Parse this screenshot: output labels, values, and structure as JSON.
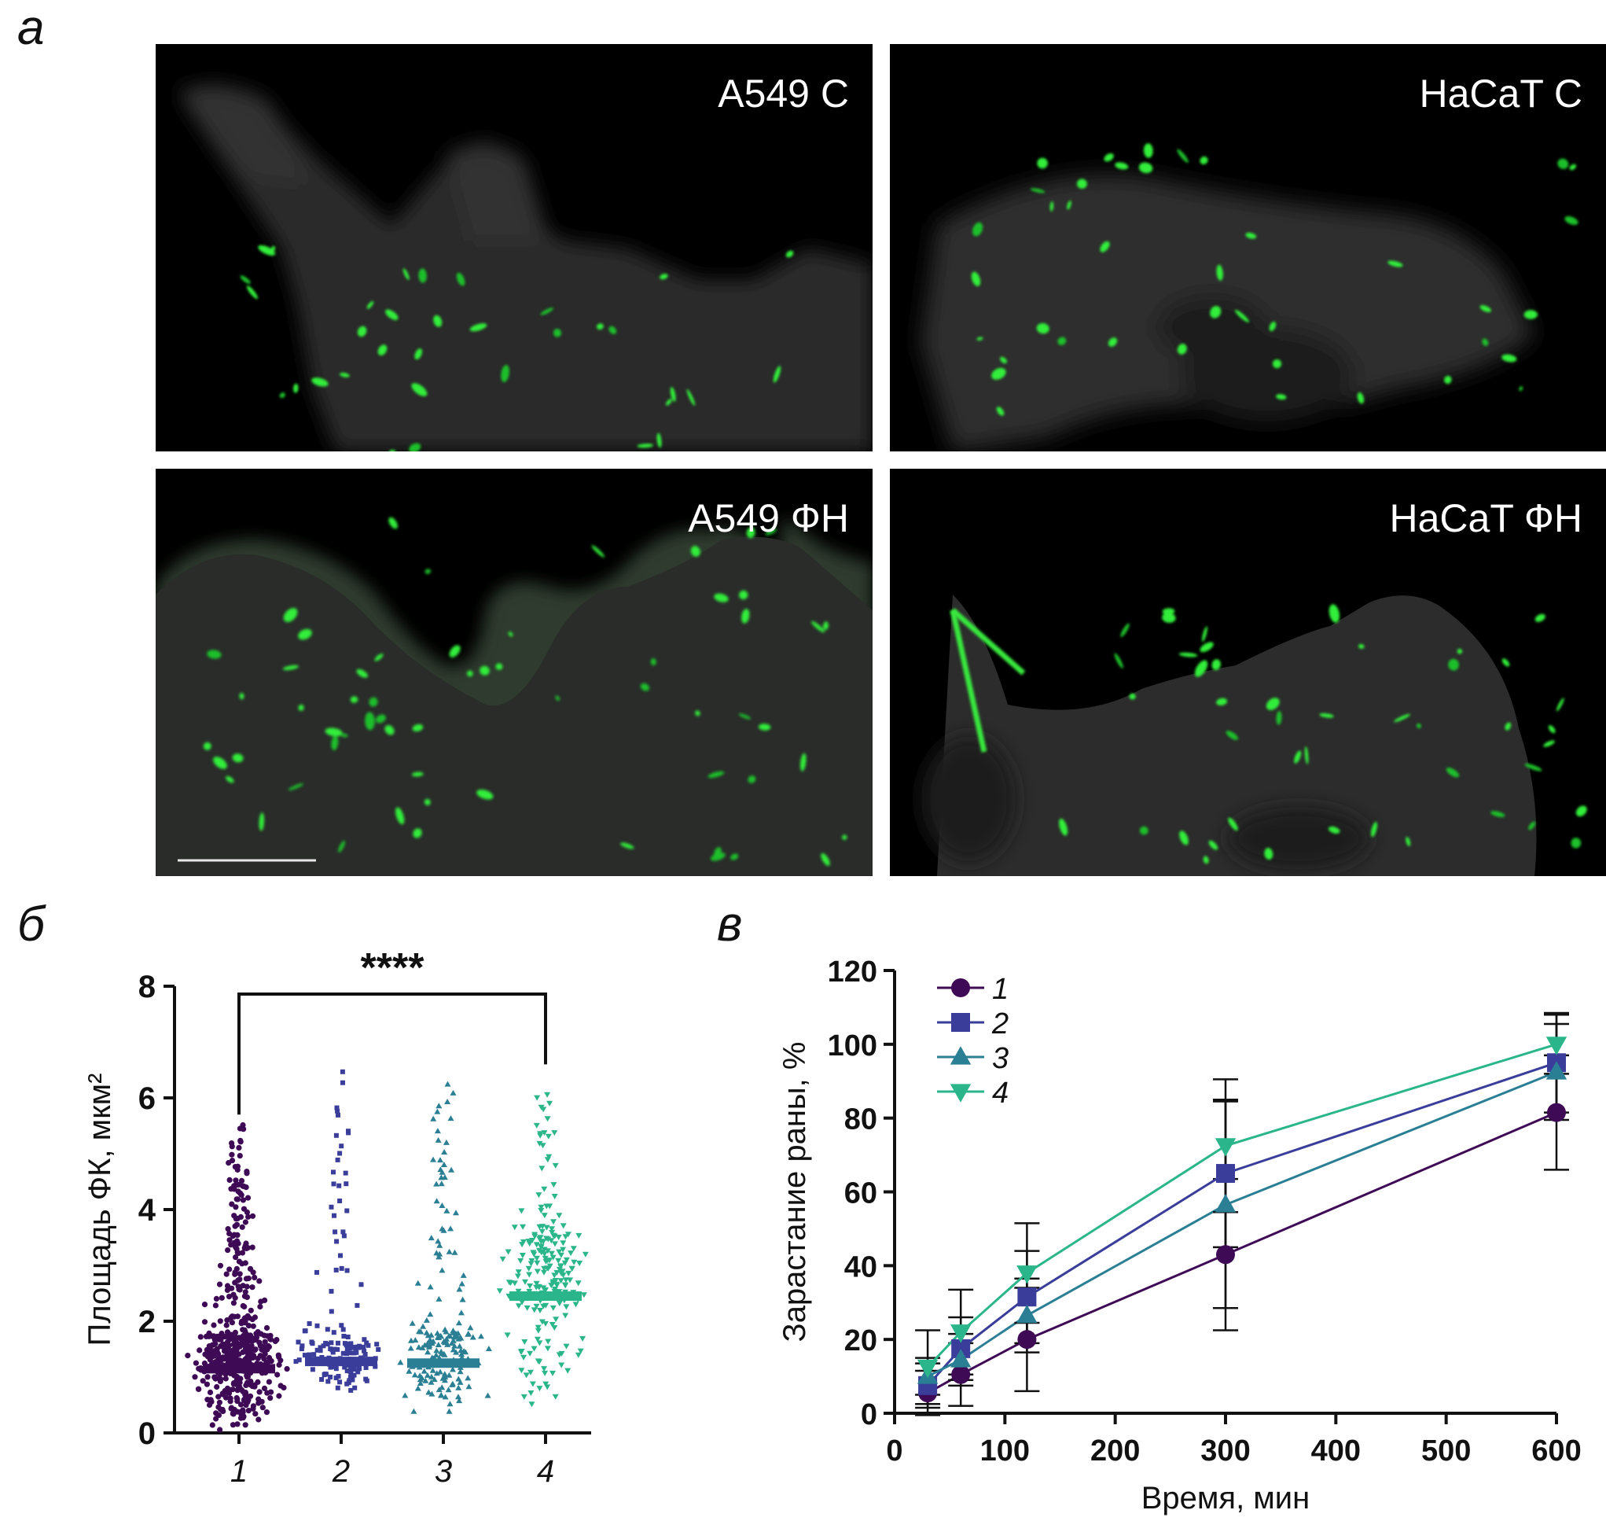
{
  "panels": {
    "a": {
      "letter": "а",
      "images": [
        {
          "label": "A549 С"
        },
        {
          "label": "HaCaT С"
        },
        {
          "label": "A549 ФН"
        },
        {
          "label": "HaCaT ФН"
        }
      ]
    },
    "b": {
      "letter": "б"
    },
    "c": {
      "letter": "в"
    }
  },
  "chart_data": [
    {
      "type": "scatter",
      "ylabel": "Площадь ФК, мкм²",
      "xlabel": "",
      "categories": [
        "1",
        "2",
        "3",
        "4"
      ],
      "ylim": [
        0,
        8
      ],
      "yticks": [
        0,
        2,
        4,
        6,
        8
      ],
      "medians": [
        1.15,
        1.28,
        1.25,
        2.45
      ],
      "ranges": [
        [
          0.05,
          5.55
        ],
        [
          0.7,
          6.9
        ],
        [
          0.3,
          6.35
        ],
        [
          0.3,
          6.35
        ]
      ],
      "point_counts": [
        600,
        160,
        190,
        240
      ],
      "series_colors": [
        "#3f0a55",
        "#3a3d9a",
        "#2b7f94",
        "#2bb58a"
      ],
      "markers": [
        "circle",
        "square",
        "triangle-up",
        "triangle-down"
      ],
      "significance": {
        "label": "****",
        "from": "1",
        "to": "4"
      }
    },
    {
      "type": "line",
      "xlabel": "Время, мин",
      "ylabel": "Зарастание раны, %",
      "xlim": [
        0,
        600
      ],
      "ylim": [
        0,
        120
      ],
      "xticks": [
        0,
        100,
        200,
        300,
        400,
        500,
        600
      ],
      "yticks": [
        0,
        20,
        40,
        60,
        80,
        100,
        120
      ],
      "x": [
        30,
        60,
        120,
        300,
        600
      ],
      "legend_position": "top-left",
      "series": [
        {
          "name": "1",
          "color": "#3f0a55",
          "marker": "circle",
          "values": [
            5.5,
            10.5,
            20,
            43,
            81.5
          ],
          "err": [
            6,
            8.5,
            14,
            20.5,
            15.5
          ]
        },
        {
          "name": "2",
          "color": "#3a3d9a",
          "marker": "square",
          "values": [
            7.5,
            17.5,
            31.5,
            65,
            95
          ],
          "err": [
            6,
            8.5,
            12.5,
            20,
            13.5
          ]
        },
        {
          "name": "3",
          "color": "#2b7f94",
          "marker": "triangle-up",
          "values": [
            10,
            14.5,
            26.5,
            56.5,
            92.5
          ],
          "err": [
            5,
            7,
            10,
            28,
            13
          ]
        },
        {
          "name": "4",
          "color": "#2bb58a",
          "marker": "triangle-down",
          "values": [
            12.5,
            22,
            38,
            72.5,
            100
          ],
          "err": [
            10,
            11.5,
            13.5,
            18,
            8
          ]
        }
      ]
    }
  ]
}
